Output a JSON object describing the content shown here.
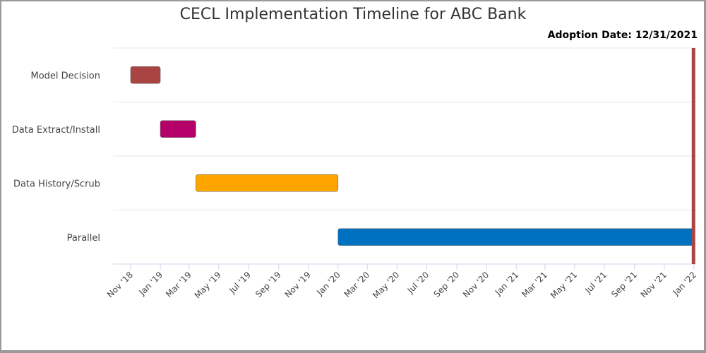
{
  "chart_data": {
    "type": "gantt",
    "title": "CECL Implementation Timeline for ABC Bank",
    "annotation": "Adoption Date: 12/31/2021",
    "tasks": [
      {
        "name": "Model Decision",
        "start": "2018-11-01",
        "end": "2019-01-01",
        "color": "#a94442"
      },
      {
        "name": "Data Extract/Install",
        "start": "2019-01-01",
        "end": "2019-03-15",
        "color": "#b5006a"
      },
      {
        "name": "Data History/Scrub",
        "start": "2019-03-15",
        "end": "2020-01-01",
        "color": "#ffa500"
      },
      {
        "name": "Parallel",
        "start": "2020-01-01",
        "end": "2021-12-31",
        "color": "#0070c0"
      }
    ],
    "x_ticks": [
      "Nov '18",
      "Jan '19",
      "Mar '19",
      "May '19",
      "Jul '19",
      "Sep '19",
      "Nov '19",
      "Jan '20",
      "Mar '20",
      "May '20",
      "Jul '20",
      "Sep '20",
      "Nov '20",
      "Jan '21",
      "Mar '21",
      "May '21",
      "Jul '21",
      "Sep '21",
      "Nov '21",
      "Jan '22"
    ],
    "marker": {
      "date": "2021-12-31",
      "color": "#a94442"
    },
    "grid": true
  }
}
